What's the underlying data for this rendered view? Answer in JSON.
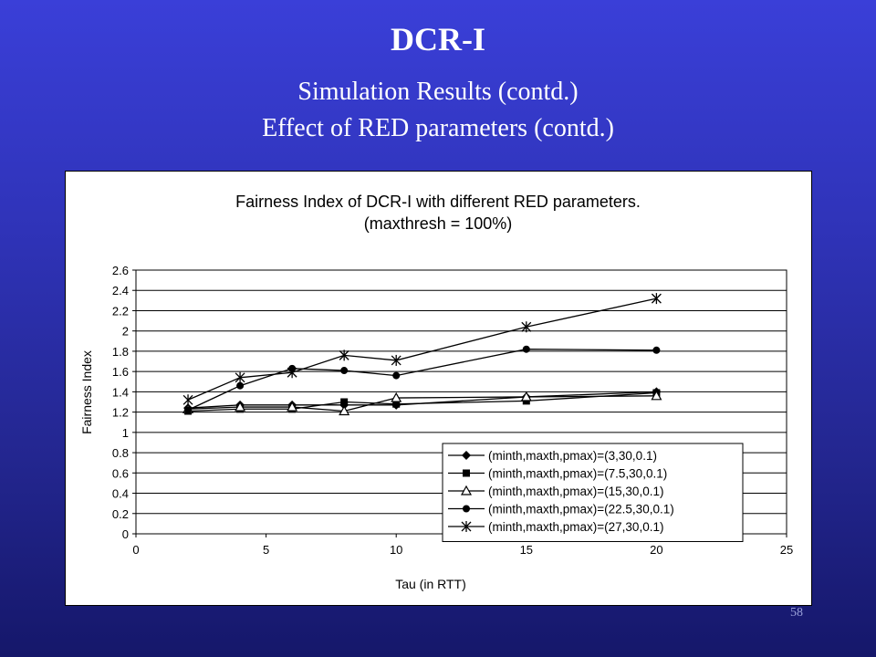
{
  "slide": {
    "title": "DCR-I",
    "subtitle_line1": "Simulation Results (contd.)",
    "subtitle_line2": "Effect of RED parameters (contd.)",
    "page_number": "58"
  },
  "chart_data": {
    "type": "line",
    "title": "Fairness Index of DCR-I with different RED parameters.",
    "subtitle": "(maxthresh = 100%)",
    "xlabel": "Tau (in RTT)",
    "ylabel": "Fairness Index",
    "xlim": [
      0,
      25
    ],
    "ylim": [
      0,
      2.6
    ],
    "xticks": [
      0,
      5,
      10,
      15,
      20,
      25
    ],
    "yticks": [
      0,
      0.2,
      0.4,
      0.6,
      0.8,
      1,
      1.2,
      1.4,
      1.6,
      1.8,
      2,
      2.2,
      2.4,
      2.6
    ],
    "grid": true,
    "legend_position": "bottom-right",
    "series": [
      {
        "name": "(minth,maxth,pmax)=(3,30,0.1)",
        "marker": "diamond",
        "x": [
          2,
          4,
          6,
          8,
          10,
          15,
          20
        ],
        "y": [
          1.24,
          1.27,
          1.27,
          1.27,
          1.27,
          1.35,
          1.4
        ]
      },
      {
        "name": "(minth,maxth,pmax)=(7.5,30,0.1)",
        "marker": "square",
        "x": [
          2,
          4,
          6,
          8,
          10,
          15,
          20
        ],
        "y": [
          1.21,
          1.23,
          1.23,
          1.3,
          1.28,
          1.31,
          1.39
        ]
      },
      {
        "name": "(minth,maxth,pmax)=(15,30,0.1)",
        "marker": "triangle",
        "x": [
          2,
          4,
          6,
          8,
          10,
          15,
          20
        ],
        "y": [
          1.23,
          1.25,
          1.25,
          1.21,
          1.34,
          1.35,
          1.36
        ]
      },
      {
        "name": "(minth,maxth,pmax)=(22.5,30,0.1)",
        "marker": "circle",
        "x": [
          2,
          4,
          6,
          8,
          10,
          15,
          20
        ],
        "y": [
          1.22,
          1.46,
          1.63,
          1.61,
          1.56,
          1.82,
          1.81
        ]
      },
      {
        "name": "(minth,maxth,pmax)=(27,30,0.1)",
        "marker": "star",
        "x": [
          2,
          4,
          6,
          8,
          10,
          15,
          20
        ],
        "y": [
          1.32,
          1.54,
          1.59,
          1.76,
          1.71,
          2.04,
          2.32
        ]
      }
    ]
  }
}
